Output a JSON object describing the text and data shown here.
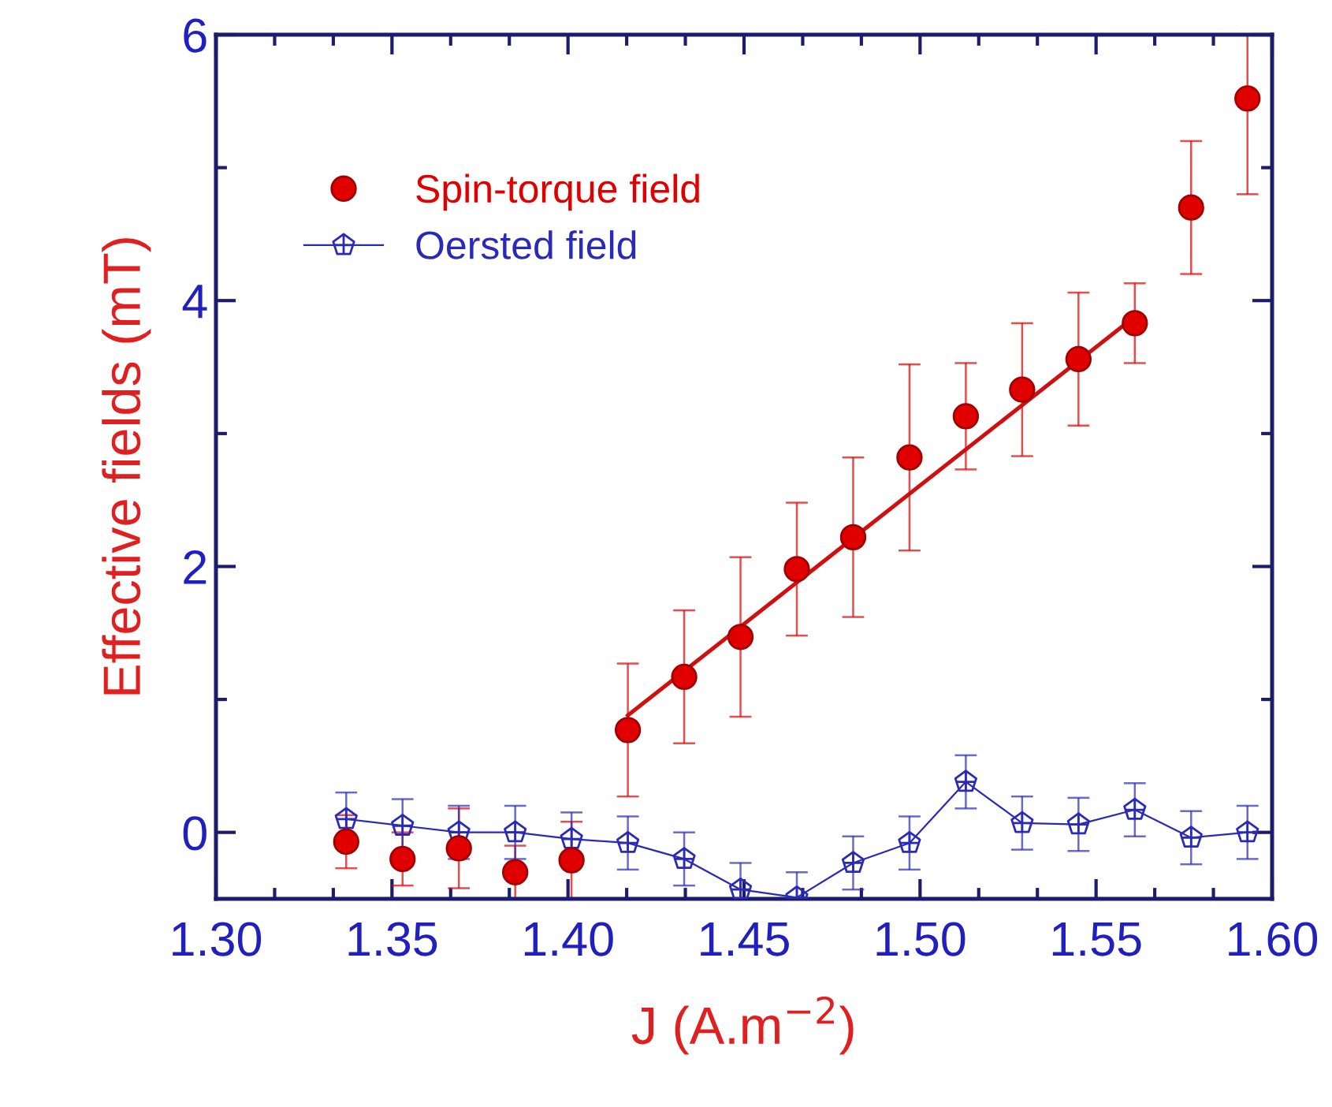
{
  "chart_data": {
    "type": "scatter",
    "xlabel": "J (A.m$^{−2}$)",
    "ylabel": "Effective fields (mT)",
    "xlim": [
      1.3,
      1.6
    ],
    "xticks": [
      {
        "value": 1.3,
        "label": "1.30"
      },
      1.35,
      {
        "value": 1.4,
        "label": "1.40"
      },
      1.45,
      {
        "value": 1.5,
        "label": "1.50"
      },
      1.55,
      {
        "value": 1.6,
        "label": "1.60"
      }
    ],
    "ylim": [
      -0.5,
      6
    ],
    "yticks": [
      0,
      2,
      4,
      6
    ],
    "grid": false,
    "legend": "top left",
    "x": [
      1.337,
      1.353,
      1.369,
      1.385,
      1.401,
      1.417,
      1.433,
      1.449,
      1.465,
      1.481,
      1.497,
      1.513,
      1.529,
      1.545,
      1.561,
      1.577,
      1.593
    ],
    "series": [
      {
        "name": "Spin-torque field",
        "marker": "circle",
        "color": "#e00000",
        "values": [
          -0.07,
          -0.2,
          -0.12,
          -0.3,
          -0.21,
          0.77,
          1.17,
          1.47,
          1.98,
          2.22,
          2.82,
          3.13,
          3.33,
          3.56,
          3.83,
          4.7,
          5.52
        ],
        "errors": [
          0.2,
          0.2,
          0.3,
          0.2,
          0.29,
          0.5,
          0.5,
          0.6,
          0.5,
          0.6,
          0.7,
          0.4,
          0.5,
          0.5,
          0.3,
          0.5,
          [
            4.8,
            6.0
          ]
        ]
      },
      {
        "name": "Oersted field",
        "type": "line",
        "marker": "cross",
        "color": "#2a2ab8",
        "values": [
          0.1,
          0.05,
          0,
          0,
          -0.05,
          -0.08,
          -0.2,
          -0.43,
          -0.49,
          -0.23,
          -0.08,
          0.38,
          0.07,
          0.06,
          0.17,
          -0.04,
          0
        ],
        "errors": [
          0.2,
          0.2,
          0.2,
          0.2,
          0.2,
          0.2,
          0.2,
          [
            -0.5,
            -0.23
          ],
          [
            -0.5,
            -0.3
          ],
          0.2,
          0.2,
          0.2,
          0.2,
          0.2,
          0.2,
          0.2,
          0.2
        ]
      },
      {
        "type": "line",
        "marker": "none",
        "color": "#d01010",
        "x": [
          1.417,
          1.561
        ],
        "values": [
          0.88,
          3.88
        ]
      }
    ]
  }
}
